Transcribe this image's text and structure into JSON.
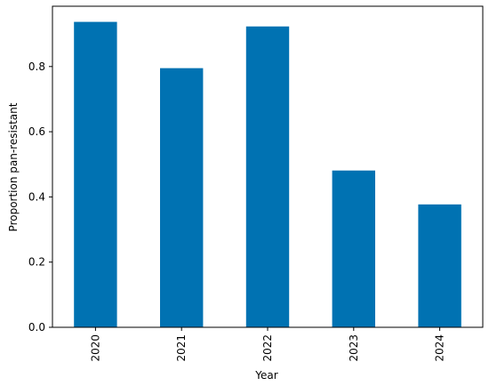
{
  "chart_data": {
    "type": "bar",
    "x_label": "Year",
    "y_label": "Proportion pan-resistant",
    "categories": [
      "2020",
      "2021",
      "2022",
      "2023",
      "2024"
    ],
    "values": [
      0.937,
      0.795,
      0.923,
      0.481,
      0.377
    ],
    "color": "#0072b2",
    "ylim": [
      0,
      0.985
    ],
    "yticks": [
      {
        "value": 0,
        "label": "0.0"
      },
      0.2,
      0.4,
      0.6,
      0.8
    ],
    "grid": false
  }
}
